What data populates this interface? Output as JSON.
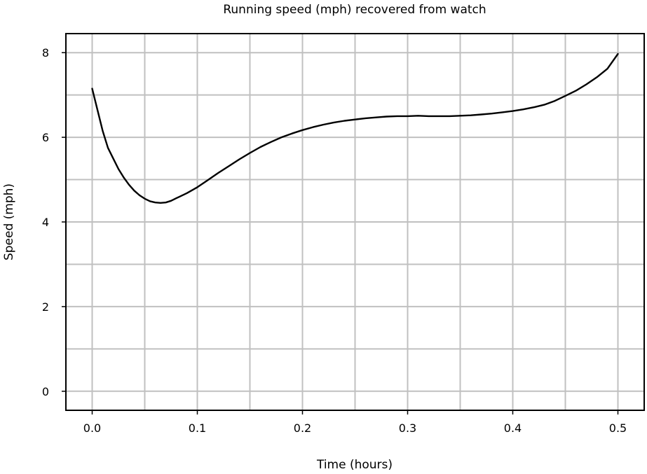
{
  "chart_data": {
    "type": "line",
    "title": "Running speed (mph) recovered from watch",
    "xlabel": "Time (hours)",
    "ylabel": "Speed (mph)",
    "xlim": [
      -0.025,
      0.525
    ],
    "ylim": [
      -0.45,
      8.45
    ],
    "x_ticks": [
      0.0,
      0.1,
      0.2,
      0.3,
      0.4,
      0.5
    ],
    "x_tick_labels": [
      "0.0",
      "0.1",
      "0.2",
      "0.3",
      "0.4",
      "0.5"
    ],
    "y_ticks": [
      0,
      2,
      4,
      6,
      8
    ],
    "y_tick_labels": [
      "0",
      "2",
      "4",
      "6",
      "8"
    ],
    "x_minor_grid": [
      0.05,
      0.15,
      0.25,
      0.35,
      0.45
    ],
    "y_minor_grid": [
      1,
      3,
      5,
      7
    ],
    "grid": true,
    "series": [
      {
        "color": "#000000",
        "x": [
          0.0,
          0.005,
          0.01,
          0.015,
          0.02,
          0.025,
          0.03,
          0.035,
          0.04,
          0.045,
          0.05,
          0.055,
          0.06,
          0.065,
          0.07,
          0.075,
          0.08,
          0.09,
          0.1,
          0.11,
          0.12,
          0.13,
          0.14,
          0.15,
          0.16,
          0.17,
          0.18,
          0.19,
          0.2,
          0.21,
          0.22,
          0.23,
          0.24,
          0.25,
          0.26,
          0.27,
          0.28,
          0.29,
          0.3,
          0.31,
          0.32,
          0.33,
          0.34,
          0.35,
          0.36,
          0.37,
          0.38,
          0.39,
          0.4,
          0.41,
          0.42,
          0.43,
          0.44,
          0.45,
          0.46,
          0.47,
          0.48,
          0.49,
          0.5
        ],
        "y": [
          7.15,
          6.65,
          6.15,
          5.75,
          5.5,
          5.25,
          5.05,
          4.88,
          4.74,
          4.63,
          4.55,
          4.49,
          4.46,
          4.45,
          4.46,
          4.5,
          4.56,
          4.68,
          4.82,
          4.99,
          5.16,
          5.32,
          5.48,
          5.63,
          5.77,
          5.89,
          6.0,
          6.09,
          6.17,
          6.24,
          6.3,
          6.35,
          6.39,
          6.42,
          6.45,
          6.47,
          6.49,
          6.5,
          6.5,
          6.51,
          6.5,
          6.5,
          6.5,
          6.51,
          6.52,
          6.54,
          6.56,
          6.59,
          6.62,
          6.66,
          6.71,
          6.77,
          6.86,
          6.98,
          7.1,
          7.25,
          7.42,
          7.62,
          7.97
        ]
      }
    ]
  }
}
